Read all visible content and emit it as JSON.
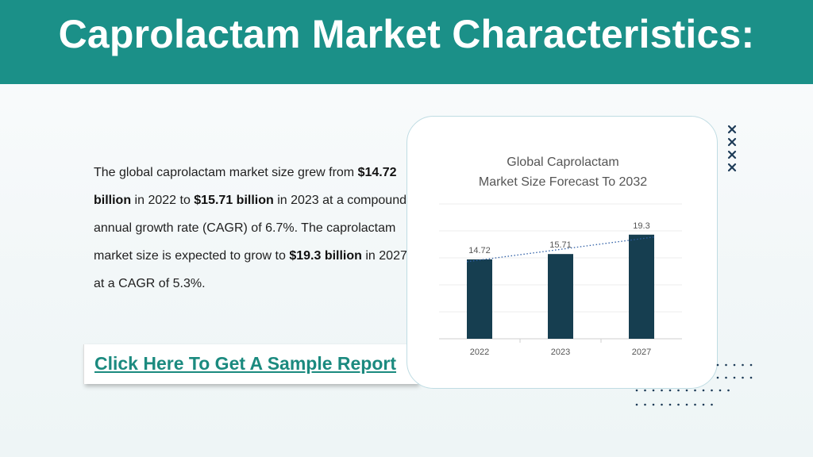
{
  "header": {
    "title": "Caprolactam Market Characteristics:"
  },
  "body": {
    "p1_a": "The global caprolactam market size grew from ",
    "p1_b": "$14.72 billion",
    "p1_c": " in 2022 to ",
    "p1_d": "$15.71 billion",
    "p1_e": " in 2023 at a compound annual growth rate (CAGR) of 6.7%. The caprolactam market size is expected to grow to ",
    "p1_f": "$19.3 billion",
    "p1_g": " in 2027 at a CAGR of 5.3%."
  },
  "cta": {
    "label": "Click Here To Get A Sample Report"
  },
  "colors": {
    "header": "#1b9088",
    "bar": "#163e50",
    "link": "#1b8a7f",
    "trend": "#2f5fa6"
  },
  "chart_data": {
    "type": "bar",
    "title_line1": "Global Caprolactam",
    "title_line2": "Market Size Forecast To 2032",
    "categories": [
      "2022",
      "2023",
      "2027"
    ],
    "values": [
      14.72,
      15.71,
      19.3
    ],
    "value_labels": [
      "14.72",
      "15.71",
      "19.3"
    ],
    "ylim": [
      0,
      25
    ],
    "grid": true,
    "trendline": "linear, dotted"
  }
}
